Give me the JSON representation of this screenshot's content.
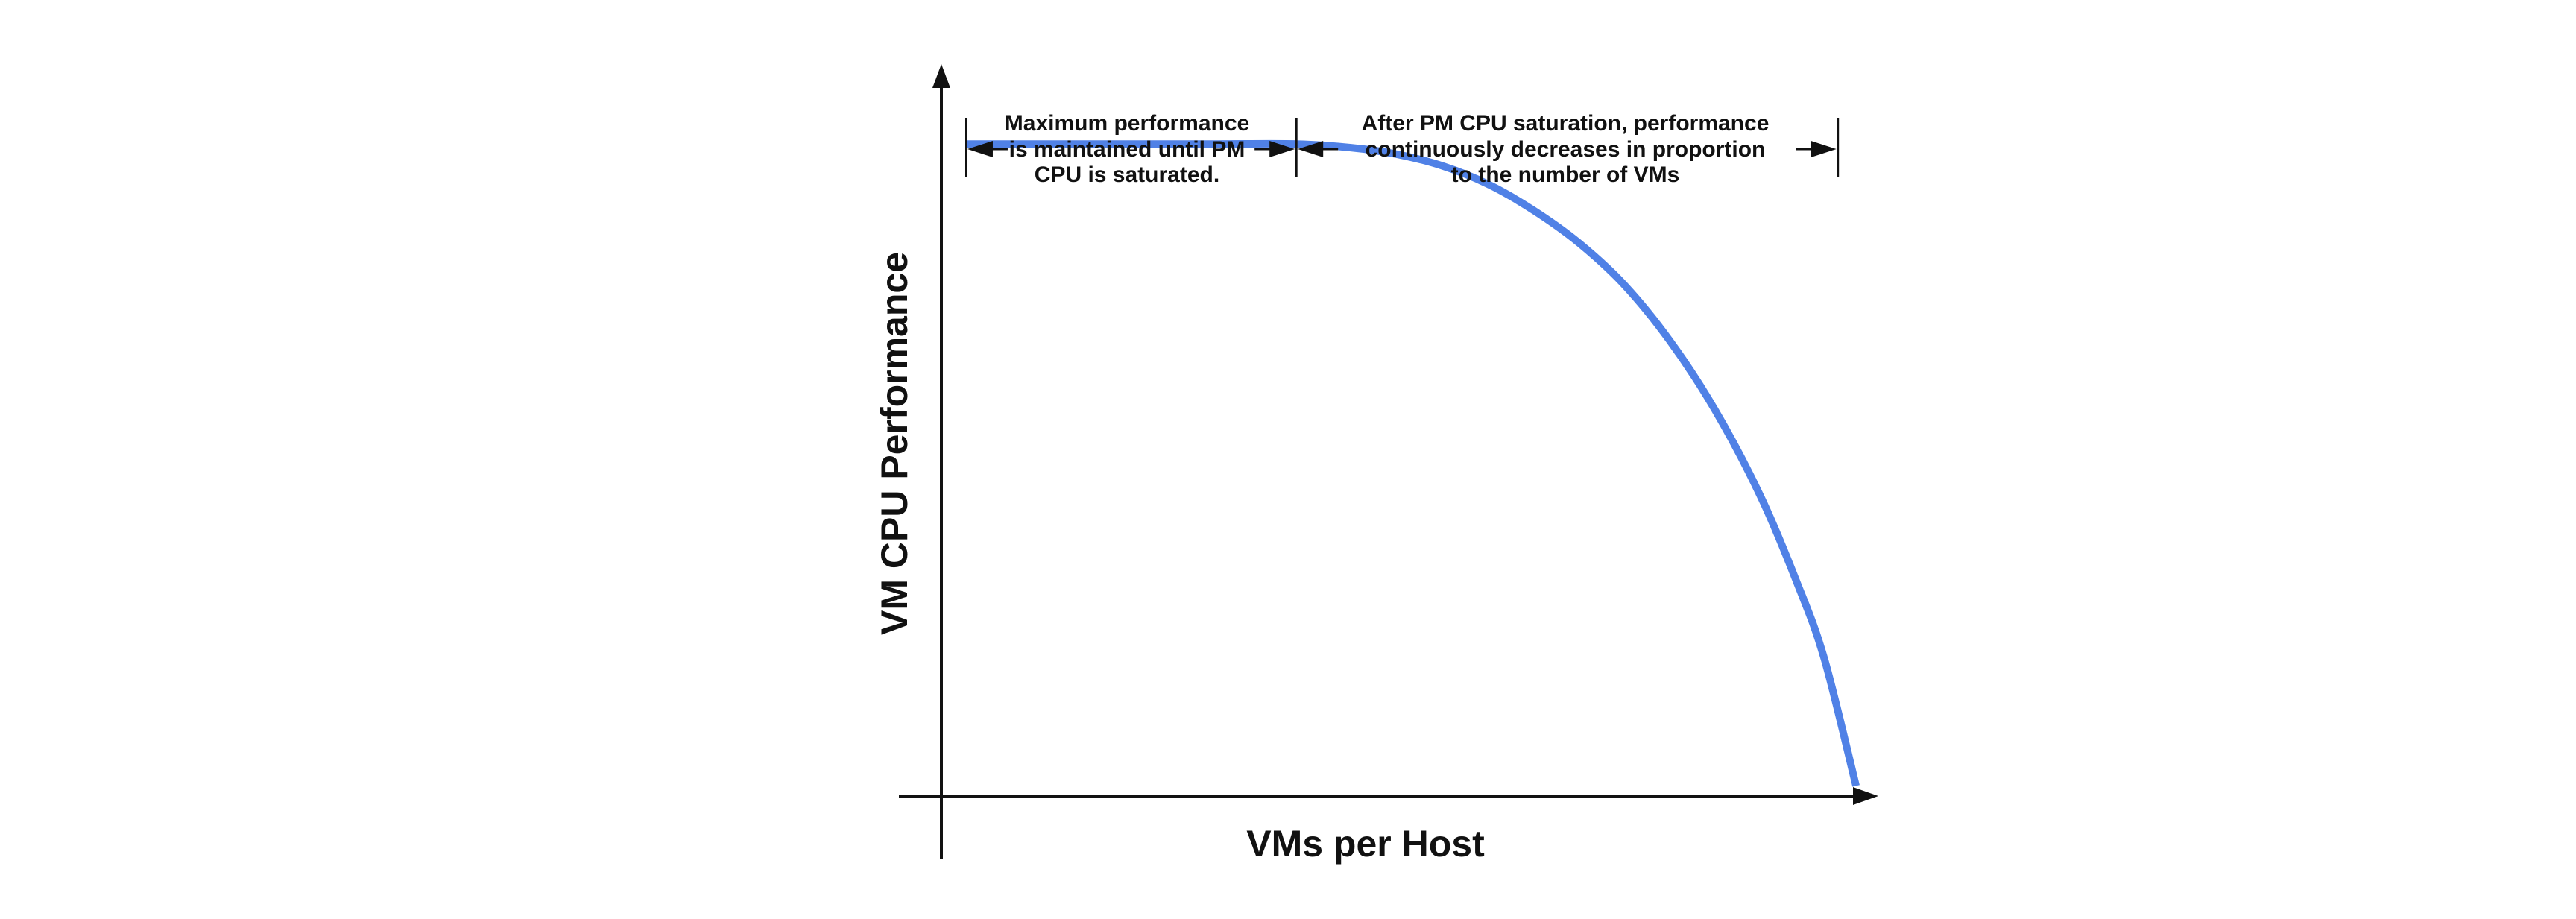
{
  "chart_data": {
    "type": "line",
    "title": "",
    "xlabel": "VMs per Host",
    "ylabel": "VM CPU Performance",
    "grid": false,
    "legend": "none",
    "xlim": [
      0,
      100
    ],
    "ylim": [
      0,
      100
    ],
    "series": [
      {
        "color": "#5081E6",
        "points": [
          [
            2.7,
            90
          ],
          [
            10,
            90
          ],
          [
            20,
            90
          ],
          [
            30,
            90
          ],
          [
            39,
            90
          ],
          [
            45,
            89.5
          ],
          [
            50,
            88.6
          ],
          [
            55,
            87
          ],
          [
            60,
            84.5
          ],
          [
            65,
            80.9
          ],
          [
            70,
            76.4
          ],
          [
            75,
            70.6
          ],
          [
            80,
            62.9
          ],
          [
            85,
            53.3
          ],
          [
            90,
            41.4
          ],
          [
            94,
            29.5
          ],
          [
            97,
            19
          ],
          [
            100.5,
            1.4
          ]
        ]
      }
    ],
    "annotations": [
      {
        "lines": [
          "Maximum performance",
          "is maintained until PM",
          "CPU is saturated."
        ],
        "span_x": [
          2.7,
          39
        ]
      },
      {
        "lines": [
          "After PM CPU saturation, performance",
          "continuously decreases in proportion",
          "to the number of VMs"
        ],
        "span_x": [
          39,
          98.5
        ]
      }
    ]
  },
  "colors": {
    "line": "#5081E6",
    "axis": "#111111",
    "text": "#111111"
  }
}
